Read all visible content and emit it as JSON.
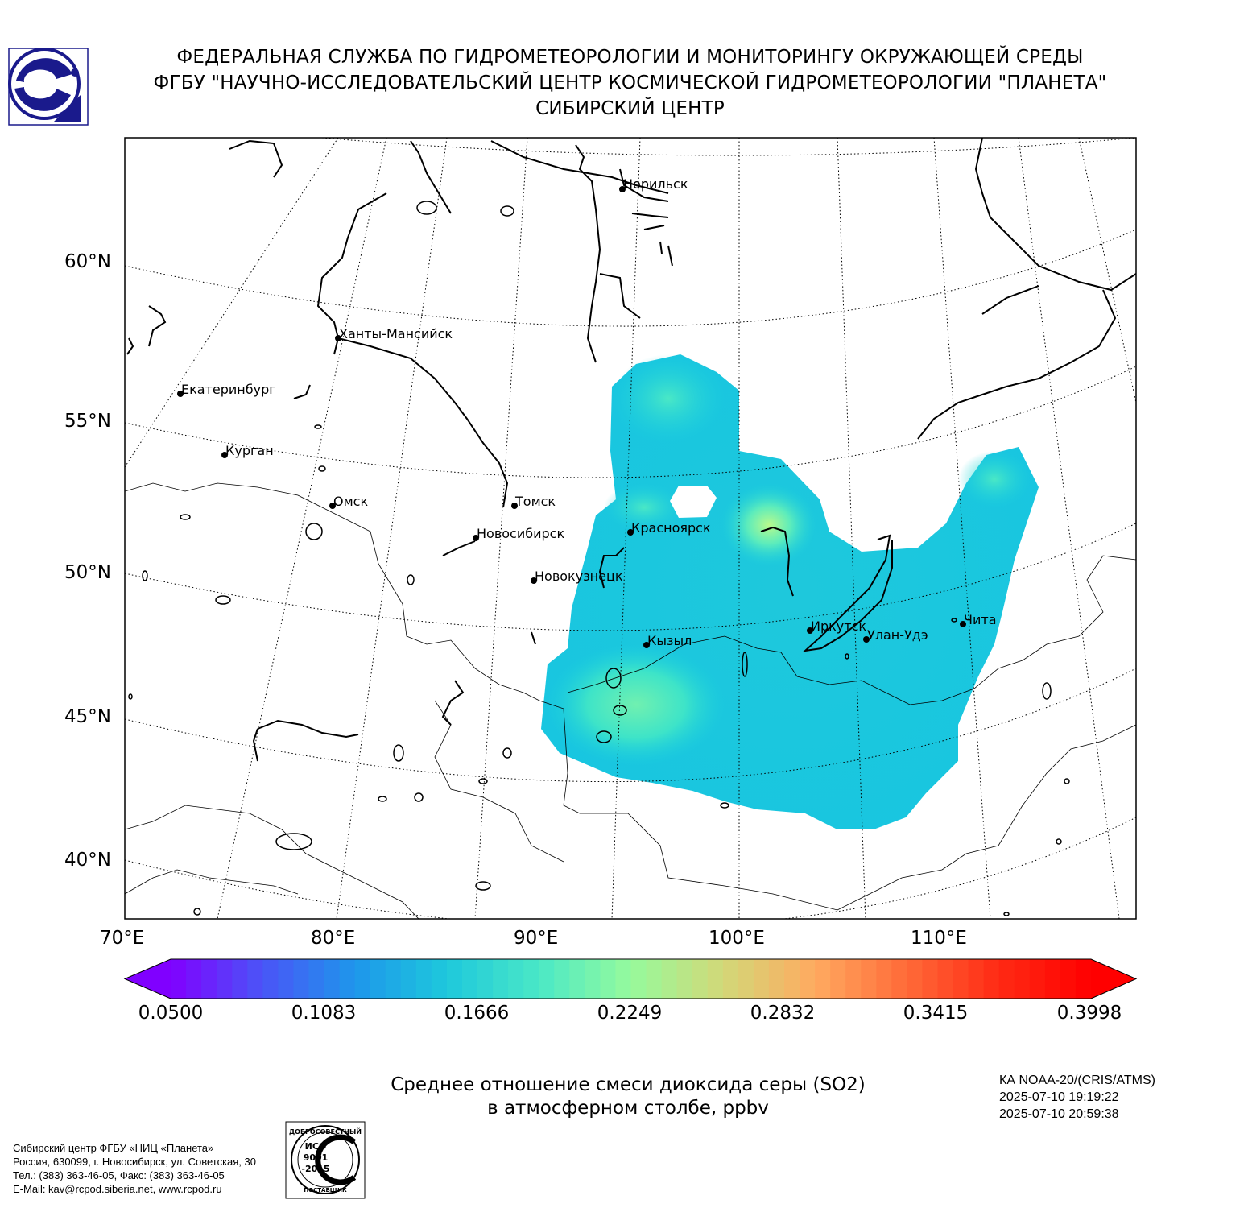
{
  "header": {
    "line1": "ФЕДЕРАЛЬНАЯ СЛУЖБА ПО ГИДРОМЕТЕОРОЛОГИИ И МОНИТОРИНГУ ОКРУЖАЮЩЕЙ СРЕДЫ",
    "line2": "ФГБУ \"НАУЧНО-ИССЛЕДОВАТЕЛЬСКИЙ ЦЕНТР КОСМИЧЕСКОЙ ГИДРОМЕТЕОРОЛОГИИ \"ПЛАНЕТА\"",
    "line3": "СИБИРСКИЙ ЦЕНТР"
  },
  "map": {
    "lat_labels": [
      "60°N",
      "55°N",
      "50°N",
      "45°N",
      "40°N"
    ],
    "lon_labels": [
      "70°E",
      "80°E",
      "90°E",
      "100°E",
      "110°E"
    ],
    "cities": [
      {
        "name": "Норильск"
      },
      {
        "name": "Ханты-Мансийск"
      },
      {
        "name": "Екатеринбург"
      },
      {
        "name": "Курган"
      },
      {
        "name": "Омск"
      },
      {
        "name": "Томск"
      },
      {
        "name": "Новосибирск"
      },
      {
        "name": "Красноярск"
      },
      {
        "name": "Новокузнецк"
      },
      {
        "name": "Кызыл"
      },
      {
        "name": "Иркутск"
      },
      {
        "name": "Улан-Удэ"
      },
      {
        "name": "Чита"
      }
    ]
  },
  "colorbar": {
    "ticks": [
      "0.0500",
      "0.1083",
      "0.1666",
      "0.2249",
      "0.2832",
      "0.3415",
      "0.3998"
    ],
    "min": 0.05,
    "max": 0.3998,
    "colors": [
      "#8000ff",
      "#4a55f7",
      "#1e96eb",
      "#1ec8dc",
      "#4ae8c6",
      "#96fa9c",
      "#d2d878",
      "#ffaa60",
      "#ff6a38",
      "#ff2a14",
      "#ff0000"
    ]
  },
  "caption": {
    "line1": "Среднее отношение смеси диоксида серы (SO2)",
    "line2": "в атмосферном столбе, ppbv"
  },
  "satellite": {
    "name": "КА NOAA-20/(CRIS/ATMS)",
    "start": "2025-07-10 19:19:22",
    "end": "2025-07-10 20:59:38"
  },
  "footer": {
    "line1": "Сибирский центр ФГБУ «НИЦ «Планета»",
    "line2": "Россия, 630099, г. Новосибирск, ул. Советская, 30",
    "line3": "Тел.: (383) 363-46-05, Факс: (383) 363-46-05",
    "line4": "E-Mail: kav@rcpod.siberia.net, www.rcpod.ru"
  },
  "iso_badge": {
    "top_text": "ДОБРОСОВЕСТНЫЙ",
    "center_line1": "ИСО",
    "center_line2": "9001",
    "center_line3": "-2015",
    "bottom_text": "ПОСТАВЩИК"
  }
}
